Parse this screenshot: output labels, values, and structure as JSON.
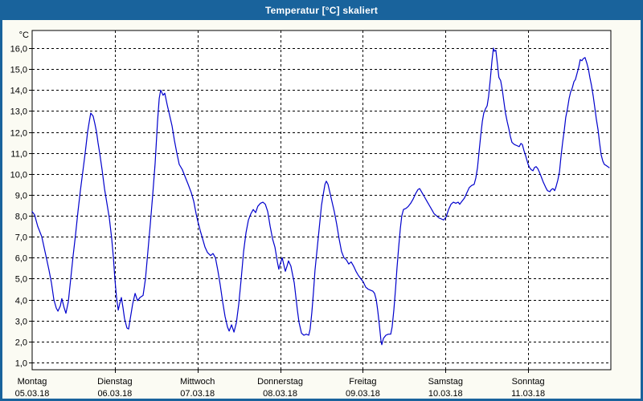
{
  "window": {
    "title": "Temperatur [°C] skaliert"
  },
  "colors": {
    "titlebar": "#19639c",
    "window_border": "#19639c",
    "content_background": "#fbfbf3",
    "plot_background": "#ffffff",
    "plot_border": "#000000",
    "grid": "#000000",
    "text": "#000000",
    "line": "#0000cc"
  },
  "y_axis": {
    "unit_label": "°C",
    "tick_labels": [
      "16,0",
      "15,0",
      "14,0",
      "13,0",
      "12,0",
      "11,0",
      "10,0",
      "9,0",
      "8,0",
      "7,0",
      "6,0",
      "5,0",
      "4,0",
      "3,0",
      "2,0",
      "1,0"
    ],
    "min": 1.0,
    "max": 16.0,
    "step": 1.0
  },
  "x_axis": {
    "days": [
      {
        "name": "Montag",
        "date": "05.03.18"
      },
      {
        "name": "Dienstag",
        "date": "06.03.18"
      },
      {
        "name": "Mittwoch",
        "date": "07.03.18"
      },
      {
        "name": "Donnerstag",
        "date": "08.03.18"
      },
      {
        "name": "Freitag",
        "date": "09.03.18"
      },
      {
        "name": "Samstag",
        "date": "10.03.18"
      },
      {
        "name": "Sonntag",
        "date": "11.03.18"
      }
    ]
  },
  "chart_data": {
    "type": "line",
    "title": "Temperatur [°C] skaliert",
    "xlabel": "",
    "ylabel": "°C",
    "ylim": [
      1.0,
      16.0
    ],
    "x_unit": "hours from Montag 05.03.18 00:00",
    "xlim": [
      0,
      168
    ],
    "grid": "dashed",
    "legend": "none",
    "categories": [
      "Montag 05.03.18",
      "Dienstag 06.03.18",
      "Mittwoch 07.03.18",
      "Donnerstag 08.03.18",
      "Freitag 09.03.18",
      "Samstag 10.03.18",
      "Sonntag 11.03.18"
    ],
    "series": [
      {
        "name": "Temperatur",
        "color": "#0000cc",
        "points": [
          [
            0,
            8.2
          ],
          [
            0.7,
            8.05
          ],
          [
            1.6,
            7.5
          ],
          [
            2.8,
            7.0
          ],
          [
            4,
            6.1
          ],
          [
            4.9,
            5.4
          ],
          [
            5.6,
            4.8
          ],
          [
            6.3,
            4.0
          ],
          [
            7,
            3.6
          ],
          [
            7.5,
            3.45
          ],
          [
            8.2,
            3.7
          ],
          [
            8.6,
            4.05
          ],
          [
            9.3,
            3.6
          ],
          [
            9.8,
            3.35
          ],
          [
            10.5,
            3.9
          ],
          [
            11.2,
            5.0
          ],
          [
            11.9,
            6.1
          ],
          [
            12.6,
            7.1
          ],
          [
            13.3,
            8.2
          ],
          [
            14,
            9.2
          ],
          [
            14.7,
            10.1
          ],
          [
            15.4,
            11.0
          ],
          [
            16.1,
            12.0
          ],
          [
            16.6,
            12.5
          ],
          [
            17,
            12.9
          ],
          [
            17.7,
            12.75
          ],
          [
            18.2,
            12.4
          ],
          [
            18.7,
            12.0
          ],
          [
            19.1,
            11.5
          ],
          [
            19.6,
            11.0
          ],
          [
            20.3,
            10.2
          ],
          [
            21,
            9.3
          ],
          [
            21.7,
            8.6
          ],
          [
            22.4,
            7.9
          ],
          [
            23.1,
            6.9
          ],
          [
            23.6,
            6.0
          ],
          [
            24,
            5.0
          ],
          [
            24.5,
            4.1
          ],
          [
            25,
            3.5
          ],
          [
            25.4,
            3.8
          ],
          [
            25.9,
            4.1
          ],
          [
            26.4,
            3.6
          ],
          [
            26.8,
            3.1
          ],
          [
            27.5,
            2.65
          ],
          [
            28,
            2.6
          ],
          [
            28.5,
            3.1
          ],
          [
            29.2,
            3.8
          ],
          [
            29.9,
            4.3
          ],
          [
            30.6,
            3.95
          ],
          [
            31.3,
            4.1
          ],
          [
            32.2,
            4.2
          ],
          [
            32.9,
            5.0
          ],
          [
            33.6,
            6.3
          ],
          [
            34.3,
            7.6
          ],
          [
            35,
            9.0
          ],
          [
            35.7,
            10.5
          ],
          [
            36.4,
            12.5
          ],
          [
            36.9,
            13.6
          ],
          [
            37.3,
            14.0
          ],
          [
            38,
            13.75
          ],
          [
            38.5,
            13.85
          ],
          [
            39.2,
            13.3
          ],
          [
            39.9,
            12.8
          ],
          [
            40.6,
            12.3
          ],
          [
            41.3,
            11.6
          ],
          [
            42,
            11.0
          ],
          [
            42.7,
            10.45
          ],
          [
            43.6,
            10.2
          ],
          [
            44.3,
            9.9
          ],
          [
            45.3,
            9.5
          ],
          [
            46.2,
            9.1
          ],
          [
            46.9,
            8.7
          ],
          [
            47.6,
            8.1
          ],
          [
            48,
            7.8
          ],
          [
            48.8,
            7.3
          ],
          [
            49.5,
            6.9
          ],
          [
            50.2,
            6.5
          ],
          [
            50.9,
            6.25
          ],
          [
            51.8,
            6.1
          ],
          [
            52.5,
            6.2
          ],
          [
            53.2,
            6.0
          ],
          [
            53.9,
            5.4
          ],
          [
            54.6,
            4.7
          ],
          [
            55.3,
            3.9
          ],
          [
            56,
            3.2
          ],
          [
            56.7,
            2.7
          ],
          [
            57.2,
            2.5
          ],
          [
            57.9,
            2.8
          ],
          [
            58.6,
            2.45
          ],
          [
            59.3,
            2.9
          ],
          [
            60,
            3.8
          ],
          [
            60.7,
            5.0
          ],
          [
            61.4,
            6.3
          ],
          [
            62.1,
            7.2
          ],
          [
            62.8,
            7.8
          ],
          [
            63.5,
            8.1
          ],
          [
            64.2,
            8.3
          ],
          [
            64.9,
            8.15
          ],
          [
            65.5,
            8.45
          ],
          [
            66.3,
            8.6
          ],
          [
            67,
            8.65
          ],
          [
            67.7,
            8.55
          ],
          [
            68.4,
            8.2
          ],
          [
            69.1,
            7.5
          ],
          [
            69.8,
            6.9
          ],
          [
            70.5,
            6.5
          ],
          [
            71.2,
            5.8
          ],
          [
            71.6,
            5.45
          ],
          [
            72,
            5.7
          ],
          [
            72.6,
            6.0
          ],
          [
            73,
            5.7
          ],
          [
            73.5,
            5.35
          ],
          [
            74,
            5.6
          ],
          [
            74.4,
            5.85
          ],
          [
            75.1,
            5.6
          ],
          [
            75.6,
            5.2
          ],
          [
            76.1,
            4.8
          ],
          [
            76.5,
            4.2
          ],
          [
            77,
            3.5
          ],
          [
            77.5,
            2.9
          ],
          [
            78.2,
            2.4
          ],
          [
            78.9,
            2.3
          ],
          [
            79.6,
            2.35
          ],
          [
            80.3,
            2.3
          ],
          [
            80.7,
            2.6
          ],
          [
            81.2,
            3.4
          ],
          [
            81.7,
            4.4
          ],
          [
            82.1,
            5.4
          ],
          [
            82.6,
            6.2
          ],
          [
            83.1,
            7.0
          ],
          [
            83.5,
            7.7
          ],
          [
            84,
            8.5
          ],
          [
            84.5,
            9.0
          ],
          [
            85,
            9.5
          ],
          [
            85.4,
            9.65
          ],
          [
            85.9,
            9.5
          ],
          [
            86.3,
            9.2
          ],
          [
            87,
            8.7
          ],
          [
            87.7,
            8.2
          ],
          [
            88.4,
            7.6
          ],
          [
            89.1,
            6.9
          ],
          [
            89.8,
            6.3
          ],
          [
            90.5,
            6.0
          ],
          [
            91.2,
            5.9
          ],
          [
            91.9,
            5.7
          ],
          [
            92.6,
            5.8
          ],
          [
            93.3,
            5.6
          ],
          [
            94,
            5.35
          ],
          [
            94.7,
            5.15
          ],
          [
            95.4,
            5.0
          ],
          [
            96.1,
            4.85
          ],
          [
            96.8,
            4.6
          ],
          [
            97.5,
            4.5
          ],
          [
            98.2,
            4.45
          ],
          [
            98.9,
            4.4
          ],
          [
            99.4,
            4.3
          ],
          [
            99.9,
            4.0
          ],
          [
            100.3,
            3.5
          ],
          [
            100.8,
            2.8
          ],
          [
            101.3,
            2.0
          ],
          [
            101.5,
            1.85
          ],
          [
            102,
            2.15
          ],
          [
            102.7,
            2.3
          ],
          [
            103.4,
            2.35
          ],
          [
            104.1,
            2.35
          ],
          [
            104.5,
            2.7
          ],
          [
            105,
            3.5
          ],
          [
            105.5,
            4.5
          ],
          [
            105.9,
            5.5
          ],
          [
            106.4,
            6.5
          ],
          [
            106.9,
            7.4
          ],
          [
            107.3,
            8.0
          ],
          [
            107.8,
            8.3
          ],
          [
            108.5,
            8.35
          ],
          [
            109.2,
            8.45
          ],
          [
            109.9,
            8.6
          ],
          [
            110.6,
            8.8
          ],
          [
            111.3,
            9.05
          ],
          [
            112,
            9.25
          ],
          [
            112.5,
            9.3
          ],
          [
            113.2,
            9.1
          ],
          [
            113.9,
            8.9
          ],
          [
            114.6,
            8.7
          ],
          [
            115.3,
            8.5
          ],
          [
            116,
            8.3
          ],
          [
            116.7,
            8.1
          ],
          [
            117.4,
            8.0
          ],
          [
            118.1,
            7.9
          ],
          [
            118.8,
            7.85
          ],
          [
            119.5,
            7.8
          ],
          [
            120.2,
            7.95
          ],
          [
            120.9,
            8.3
          ],
          [
            121.6,
            8.55
          ],
          [
            122.3,
            8.65
          ],
          [
            123,
            8.6
          ],
          [
            123.7,
            8.65
          ],
          [
            124.1,
            8.55
          ],
          [
            124.8,
            8.7
          ],
          [
            125.5,
            8.85
          ],
          [
            126.2,
            9.1
          ],
          [
            126.9,
            9.35
          ],
          [
            127.6,
            9.45
          ],
          [
            128.3,
            9.5
          ],
          [
            128.8,
            9.8
          ],
          [
            129.3,
            10.3
          ],
          [
            129.7,
            11.0
          ],
          [
            130.2,
            11.8
          ],
          [
            130.7,
            12.5
          ],
          [
            131.1,
            12.9
          ],
          [
            131.6,
            13.1
          ],
          [
            132.1,
            13.25
          ],
          [
            132.5,
            13.7
          ],
          [
            133,
            14.5
          ],
          [
            133.5,
            15.4
          ],
          [
            133.9,
            16.0
          ],
          [
            134.2,
            15.85
          ],
          [
            134.6,
            15.9
          ],
          [
            135.1,
            15.2
          ],
          [
            135.5,
            14.6
          ],
          [
            136,
            14.45
          ],
          [
            136.5,
            14.0
          ],
          [
            137,
            13.4
          ],
          [
            137.4,
            12.9
          ],
          [
            137.9,
            12.5
          ],
          [
            138.4,
            12.15
          ],
          [
            138.8,
            11.8
          ],
          [
            139.3,
            11.5
          ],
          [
            140,
            11.4
          ],
          [
            140.7,
            11.35
          ],
          [
            141.4,
            11.3
          ],
          [
            141.9,
            11.45
          ],
          [
            142.3,
            11.4
          ],
          [
            142.8,
            11.1
          ],
          [
            143.3,
            10.85
          ],
          [
            144,
            10.45
          ],
          [
            144.4,
            10.3
          ],
          [
            144.9,
            10.2
          ],
          [
            145.4,
            10.15
          ],
          [
            145.8,
            10.3
          ],
          [
            146.3,
            10.35
          ],
          [
            146.8,
            10.25
          ],
          [
            147.2,
            10.1
          ],
          [
            147.7,
            9.9
          ],
          [
            148.4,
            9.6
          ],
          [
            149.1,
            9.35
          ],
          [
            149.6,
            9.2
          ],
          [
            150.3,
            9.15
          ],
          [
            150.7,
            9.25
          ],
          [
            151.2,
            9.3
          ],
          [
            151.7,
            9.2
          ],
          [
            152.1,
            9.4
          ],
          [
            152.6,
            9.7
          ],
          [
            153.1,
            10.1
          ],
          [
            153.5,
            10.8
          ],
          [
            154,
            11.5
          ],
          [
            154.5,
            12.1
          ],
          [
            154.9,
            12.7
          ],
          [
            155.4,
            13.1
          ],
          [
            155.9,
            13.6
          ],
          [
            156.3,
            13.9
          ],
          [
            156.8,
            14.1
          ],
          [
            157.3,
            14.4
          ],
          [
            157.7,
            14.5
          ],
          [
            158.2,
            14.8
          ],
          [
            158.7,
            15.1
          ],
          [
            159.1,
            15.45
          ],
          [
            159.6,
            15.4
          ],
          [
            160,
            15.5
          ],
          [
            160.5,
            15.55
          ],
          [
            161,
            15.3
          ],
          [
            161.5,
            15.0
          ],
          [
            161.9,
            14.6
          ],
          [
            162.4,
            14.2
          ],
          [
            162.9,
            13.7
          ],
          [
            163.3,
            13.2
          ],
          [
            163.8,
            12.6
          ],
          [
            164.3,
            12.1
          ],
          [
            164.7,
            11.5
          ],
          [
            165.2,
            10.9
          ],
          [
            165.7,
            10.6
          ],
          [
            166.1,
            10.45
          ],
          [
            166.6,
            10.4
          ],
          [
            167.1,
            10.35
          ],
          [
            167.5,
            10.3
          ]
        ]
      }
    ]
  }
}
